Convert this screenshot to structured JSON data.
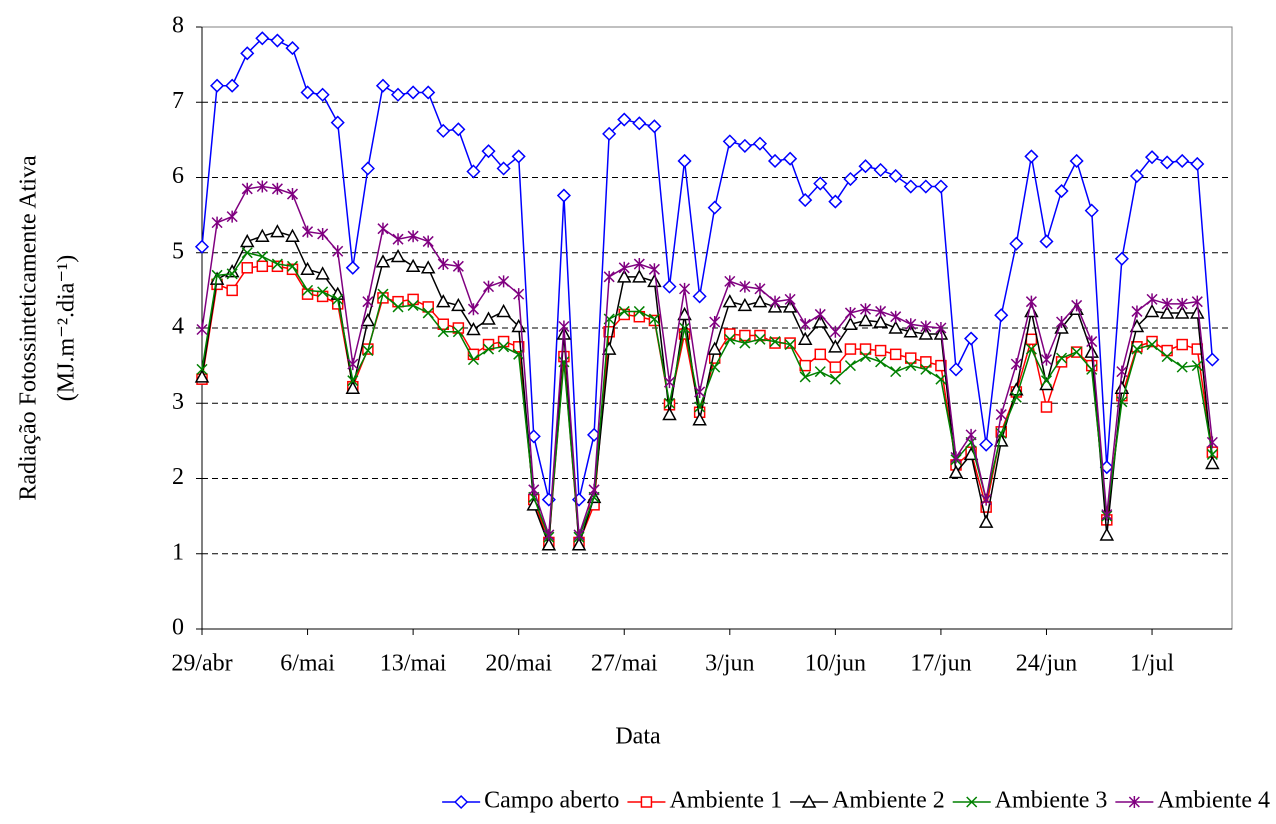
{
  "chart_data": {
    "type": "line",
    "x_label": "Data",
    "y_label": [
      "Radiação Fotossinteticamente Ativa",
      "(MJ.m⁻².dia⁻¹)"
    ],
    "categories": [
      "29/abr",
      null,
      null,
      null,
      null,
      null,
      null,
      "6/mai",
      null,
      null,
      null,
      null,
      null,
      null,
      "13/mai",
      null,
      null,
      null,
      null,
      null,
      null,
      "20/mai",
      null,
      null,
      null,
      null,
      null,
      null,
      "27/mai",
      null,
      null,
      null,
      null,
      null,
      null,
      "3/jun",
      null,
      null,
      null,
      null,
      null,
      null,
      "10/jun",
      null,
      null,
      null,
      null,
      null,
      null,
      "17/jun",
      null,
      null,
      null,
      null,
      null,
      null,
      "24/jun",
      null,
      null,
      null,
      null,
      null,
      null,
      "1/jul",
      null,
      null,
      null,
      null
    ],
    "series": [
      {
        "name": "Campo aberto",
        "color": "#0000ff",
        "marker": "diamond",
        "values": [
          5.08,
          7.22,
          7.22,
          7.65,
          7.85,
          7.82,
          7.72,
          7.13,
          7.1,
          6.73,
          4.8,
          6.12,
          7.22,
          7.1,
          7.13,
          7.13,
          6.62,
          6.64,
          6.08,
          6.35,
          6.12,
          6.28,
          2.56,
          1.72,
          5.76,
          1.72,
          2.58,
          6.58,
          6.77,
          6.72,
          6.68,
          4.55,
          6.22,
          4.42,
          5.6,
          6.48,
          6.42,
          6.45,
          6.22,
          6.25,
          5.7,
          5.92,
          5.68,
          5.98,
          6.15,
          6.1,
          6.02,
          5.88,
          5.88,
          5.88,
          3.45,
          3.86,
          2.45,
          4.17,
          5.12,
          6.28,
          5.15,
          5.82,
          6.22,
          5.56,
          2.15,
          4.92,
          6.02,
          6.27,
          6.2,
          6.22,
          6.18,
          3.58
        ]
      },
      {
        "name": "Ambiente 1",
        "color": "#ff0000",
        "marker": "square",
        "values": [
          3.32,
          4.58,
          4.5,
          4.8,
          4.82,
          4.82,
          4.78,
          4.45,
          4.42,
          4.32,
          3.22,
          3.72,
          4.4,
          4.35,
          4.38,
          4.28,
          4.05,
          4.0,
          3.65,
          3.78,
          3.82,
          3.75,
          1.72,
          1.15,
          3.62,
          1.15,
          1.65,
          3.95,
          4.18,
          4.15,
          4.1,
          2.98,
          3.92,
          2.88,
          3.6,
          3.92,
          3.9,
          3.9,
          3.8,
          3.8,
          3.5,
          3.65,
          3.48,
          3.72,
          3.72,
          3.7,
          3.65,
          3.6,
          3.55,
          3.5,
          2.18,
          2.35,
          1.62,
          2.62,
          3.15,
          3.85,
          2.95,
          3.55,
          3.68,
          3.5,
          1.45,
          3.1,
          3.75,
          3.82,
          3.7,
          3.78,
          3.72,
          2.35
        ]
      },
      {
        "name": "Ambiente 2",
        "color": "#000000",
        "marker": "triangle",
        "values": [
          3.35,
          4.65,
          4.75,
          5.15,
          5.22,
          5.28,
          5.22,
          4.78,
          4.72,
          4.45,
          3.2,
          4.1,
          4.88,
          4.95,
          4.82,
          4.8,
          4.35,
          4.3,
          3.98,
          4.12,
          4.22,
          4.02,
          1.65,
          1.12,
          3.92,
          1.12,
          1.75,
          3.72,
          4.68,
          4.68,
          4.62,
          2.85,
          4.18,
          2.78,
          3.72,
          4.35,
          4.3,
          4.35,
          4.28,
          4.28,
          3.85,
          4.08,
          3.75,
          4.05,
          4.1,
          4.08,
          4.0,
          3.95,
          3.92,
          3.92,
          2.08,
          2.32,
          1.42,
          2.5,
          3.18,
          4.22,
          3.25,
          4.0,
          4.25,
          3.68,
          1.25,
          3.2,
          4.02,
          4.22,
          4.2,
          4.2,
          4.2,
          2.2
        ]
      },
      {
        "name": "Ambiente 3",
        "color": "#008000",
        "marker": "x",
        "values": [
          3.45,
          4.7,
          4.72,
          5.0,
          4.95,
          4.85,
          4.82,
          4.5,
          4.48,
          4.38,
          3.3,
          3.7,
          4.45,
          4.28,
          4.3,
          4.2,
          3.95,
          3.95,
          3.58,
          3.72,
          3.75,
          3.65,
          1.75,
          1.22,
          3.55,
          1.22,
          1.75,
          4.12,
          4.22,
          4.22,
          4.12,
          3.0,
          4.0,
          2.95,
          3.48,
          3.85,
          3.8,
          3.85,
          3.82,
          3.78,
          3.35,
          3.42,
          3.32,
          3.5,
          3.62,
          3.55,
          3.42,
          3.5,
          3.45,
          3.32,
          2.25,
          2.48,
          1.72,
          2.6,
          3.08,
          3.72,
          3.3,
          3.6,
          3.68,
          3.45,
          1.5,
          3.02,
          3.72,
          3.78,
          3.62,
          3.48,
          3.5,
          2.32
        ]
      },
      {
        "name": "Ambiente 4",
        "color": "#800080",
        "marker": "star",
        "values": [
          3.98,
          5.4,
          5.48,
          5.85,
          5.88,
          5.85,
          5.78,
          5.28,
          5.25,
          5.02,
          3.52,
          4.35,
          5.32,
          5.18,
          5.22,
          5.15,
          4.85,
          4.82,
          4.25,
          4.55,
          4.62,
          4.45,
          1.85,
          1.25,
          4.02,
          1.25,
          1.85,
          4.68,
          4.8,
          4.85,
          4.78,
          3.28,
          4.52,
          3.15,
          4.08,
          4.62,
          4.55,
          4.52,
          4.35,
          4.38,
          4.05,
          4.18,
          3.95,
          4.2,
          4.25,
          4.22,
          4.15,
          4.05,
          4.02,
          4.0,
          2.28,
          2.58,
          1.72,
          2.85,
          3.52,
          4.35,
          3.58,
          4.08,
          4.3,
          3.82,
          1.52,
          3.42,
          4.22,
          4.38,
          4.32,
          4.32,
          4.35,
          2.48
        ]
      }
    ],
    "ylim": [
      0,
      8
    ],
    "yticks": [
      0,
      1,
      2,
      3,
      4,
      5,
      6,
      7,
      8
    ],
    "grid": true,
    "legend": "bottom"
  }
}
